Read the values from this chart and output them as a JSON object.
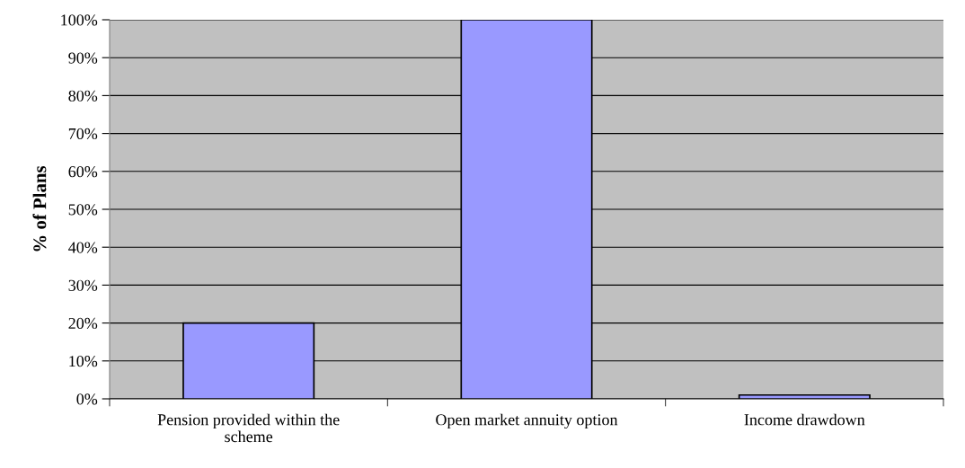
{
  "chart_data": {
    "type": "bar",
    "ylabel": "% of Plans",
    "categories": [
      "Pension provided within the\nscheme",
      "Open market annuity option",
      "Income drawdown"
    ],
    "values": [
      20,
      100,
      1
    ],
    "color": "#9999ff",
    "ylim": [
      0,
      100
    ],
    "yticks": [
      {
        "value": 0,
        "label": "0%"
      },
      {
        "value": 10,
        "label": "10%"
      },
      {
        "value": 20,
        "label": "20%"
      },
      {
        "value": 30,
        "label": "30%"
      },
      {
        "value": 40,
        "label": "40%"
      },
      {
        "value": 50,
        "label": "50%"
      },
      {
        "value": 60,
        "label": "60%"
      },
      {
        "value": 70,
        "label": "70%"
      },
      {
        "value": 80,
        "label": "80%"
      },
      {
        "value": 90,
        "label": "90%"
      },
      {
        "value": 100,
        "label": "100%"
      }
    ],
    "grid": "y"
  }
}
